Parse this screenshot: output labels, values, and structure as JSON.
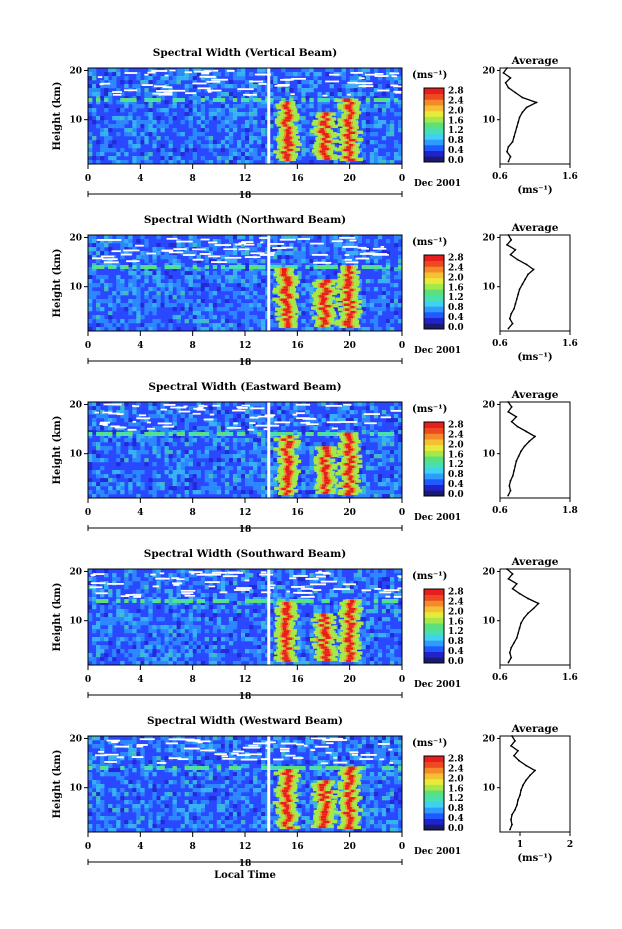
{
  "colors": {
    "scale": [
      "#1a1a6e",
      "#2222cc",
      "#1e5aff",
      "#2f9bff",
      "#3ed1f0",
      "#49e0b0",
      "#5ce07a",
      "#a5e84a",
      "#e9e93a",
      "#f5c033",
      "#f48a2a",
      "#ee4a22",
      "#e61e1e"
    ],
    "background_field": "#2a48ff",
    "gap": "#ffffff"
  },
  "chart_data": [
    {
      "type": "heatmap",
      "title": "Spectral Width (Vertical Beam)",
      "ylabel": "Height (km)",
      "xticks": [
        "0",
        "4",
        "8",
        "12",
        "16",
        "20",
        "0"
      ],
      "yticks": [
        "20",
        "10"
      ],
      "date_marker": "18",
      "date_label": "Dec 2001",
      "colorbar": {
        "unit": "(ms⁻¹)",
        "ticks": [
          "2.8",
          "2.4",
          "2.0",
          "1.6",
          "1.2",
          "0.8",
          "0.4",
          "0.0"
        ],
        "range": [
          0,
          2.8
        ]
      },
      "profile": {
        "title": "Average",
        "xlabel": "(ms⁻¹)",
        "xticks": [
          "0.6",
          "1.6"
        ],
        "xlim": [
          0.6,
          1.6
        ],
        "yticks": [
          "20",
          "10"
        ],
        "heights": [
          1.5,
          2.5,
          3.5,
          4.5,
          5.5,
          6.5,
          7.5,
          8.5,
          9.5,
          10.5,
          11.5,
          12.5,
          13.5,
          14.5,
          15.5,
          16.5,
          17.5,
          18.5,
          19.5,
          20.5
        ],
        "values": [
          0.72,
          0.75,
          0.7,
          0.72,
          0.78,
          0.8,
          0.82,
          0.84,
          0.86,
          0.88,
          0.92,
          0.98,
          1.12,
          0.92,
          0.82,
          0.72,
          0.68,
          0.75,
          0.65,
          0.7
        ]
      }
    },
    {
      "type": "heatmap",
      "title": "Spectral Width (Northward Beam)",
      "ylabel": "Height (km)",
      "xticks": [
        "0",
        "4",
        "8",
        "12",
        "16",
        "20",
        "0"
      ],
      "yticks": [
        "20",
        "10"
      ],
      "date_marker": "18",
      "date_label": "Dec 2001",
      "colorbar": {
        "unit": "(ms⁻¹)",
        "ticks": [
          "2.8",
          "2.4",
          "2.0",
          "1.6",
          "1.2",
          "0.8",
          "0.4",
          "0.0"
        ],
        "range": [
          0,
          2.8
        ]
      },
      "profile": {
        "title": "Average",
        "xlabel": "(ms⁻¹)",
        "xticks": [
          "0.6",
          "1.6"
        ],
        "xlim": [
          0.6,
          1.6
        ],
        "yticks": [
          "20",
          "10"
        ],
        "heights": [
          1.5,
          2.5,
          3.5,
          4.5,
          5.5,
          6.5,
          7.5,
          8.5,
          9.5,
          10.5,
          11.5,
          12.5,
          13.5,
          14.5,
          15.5,
          16.5,
          17.5,
          18.5,
          19.5,
          20.5
        ],
        "values": [
          0.72,
          0.78,
          0.74,
          0.76,
          0.8,
          0.82,
          0.84,
          0.86,
          0.88,
          0.92,
          0.96,
          1.0,
          1.08,
          0.98,
          0.85,
          0.75,
          0.82,
          0.7,
          0.76,
          0.72
        ]
      }
    },
    {
      "type": "heatmap",
      "title": "Spectral Width (Eastward Beam)",
      "ylabel": "Height (km)",
      "xticks": [
        "0",
        "4",
        "8",
        "12",
        "16",
        "20",
        "0"
      ],
      "yticks": [
        "20",
        "10"
      ],
      "date_marker": "18",
      "date_label": "Dec 2001",
      "colorbar": {
        "unit": "(ms⁻¹)",
        "ticks": [
          "2.8",
          "2.4",
          "2.0",
          "1.6",
          "1.2",
          "0.8",
          "0.4",
          "0.0"
        ],
        "range": [
          0,
          2.8
        ]
      },
      "profile": {
        "title": "Average",
        "xlabel": "",
        "xticks": [
          "0.6",
          "1.8"
        ],
        "xlim": [
          0.6,
          1.8
        ],
        "yticks": [
          "20",
          "10"
        ],
        "heights": [
          1.5,
          2.5,
          3.5,
          4.5,
          5.5,
          6.5,
          7.5,
          8.5,
          9.5,
          10.5,
          11.5,
          12.5,
          13.5,
          14.5,
          15.5,
          16.5,
          17.5,
          18.5,
          19.5,
          20.5
        ],
        "values": [
          0.74,
          0.78,
          0.76,
          0.78,
          0.82,
          0.84,
          0.86,
          0.88,
          0.92,
          0.96,
          1.02,
          1.1,
          1.2,
          1.05,
          0.9,
          0.8,
          0.88,
          0.74,
          0.8,
          0.74
        ]
      }
    },
    {
      "type": "heatmap",
      "title": "Spectral Width (Southward Beam)",
      "ylabel": "Height (km)",
      "xticks": [
        "0",
        "4",
        "8",
        "12",
        "16",
        "20",
        "0"
      ],
      "yticks": [
        "20",
        "10"
      ],
      "date_marker": "18",
      "date_label": "Dec 2001",
      "colorbar": {
        "unit": "(ms⁻¹)",
        "ticks": [
          "2.8",
          "2.4",
          "2.0",
          "1.6",
          "1.2",
          "0.8",
          "0.4",
          "0.0"
        ],
        "range": [
          0,
          2.8
        ]
      },
      "profile": {
        "title": "Average",
        "xlabel": "",
        "xticks": [
          "0.6",
          "1.6"
        ],
        "xlim": [
          0.6,
          1.6
        ],
        "yticks": [
          "20",
          "10"
        ],
        "heights": [
          1.5,
          2.5,
          3.5,
          4.5,
          5.5,
          6.5,
          7.5,
          8.5,
          9.5,
          10.5,
          11.5,
          12.5,
          13.5,
          14.5,
          15.5,
          16.5,
          17.5,
          18.5,
          19.5,
          20.5
        ],
        "values": [
          0.72,
          0.76,
          0.74,
          0.76,
          0.8,
          0.84,
          0.86,
          0.88,
          0.9,
          0.94,
          1.0,
          1.08,
          1.15,
          1.0,
          0.88,
          0.78,
          0.84,
          0.72,
          0.78,
          0.7
        ]
      }
    },
    {
      "type": "heatmap",
      "title": "Spectral Width (Westward Beam)",
      "ylabel": "Height (km)",
      "xlabel": "Local Time",
      "xticks": [
        "0",
        "4",
        "8",
        "12",
        "16",
        "20",
        "0"
      ],
      "yticks": [
        "20",
        "10"
      ],
      "date_marker": "18",
      "date_label": "Dec 2001",
      "colorbar": {
        "unit": "(ms⁻¹)",
        "ticks": [
          "2.8",
          "2.4",
          "2.0",
          "1.6",
          "1.2",
          "0.8",
          "0.4",
          "0.0"
        ],
        "range": [
          0,
          2.8
        ]
      },
      "profile": {
        "title": "Average",
        "xlabel": "(ms⁻¹)",
        "xticks": [
          "1",
          "2"
        ],
        "xlim": [
          0.6,
          2.0
        ],
        "yticks": [
          "20",
          "10"
        ],
        "heights": [
          1.5,
          2.5,
          3.5,
          4.5,
          5.5,
          6.5,
          7.5,
          8.5,
          9.5,
          10.5,
          11.5,
          12.5,
          13.5,
          14.5,
          15.5,
          16.5,
          17.5,
          18.5,
          19.5,
          20.5
        ],
        "values": [
          0.8,
          0.84,
          0.82,
          0.84,
          0.9,
          0.94,
          0.96,
          1.0,
          1.02,
          1.06,
          1.12,
          1.2,
          1.3,
          1.12,
          0.98,
          0.88,
          0.96,
          0.82,
          0.9,
          0.84
        ]
      }
    }
  ]
}
